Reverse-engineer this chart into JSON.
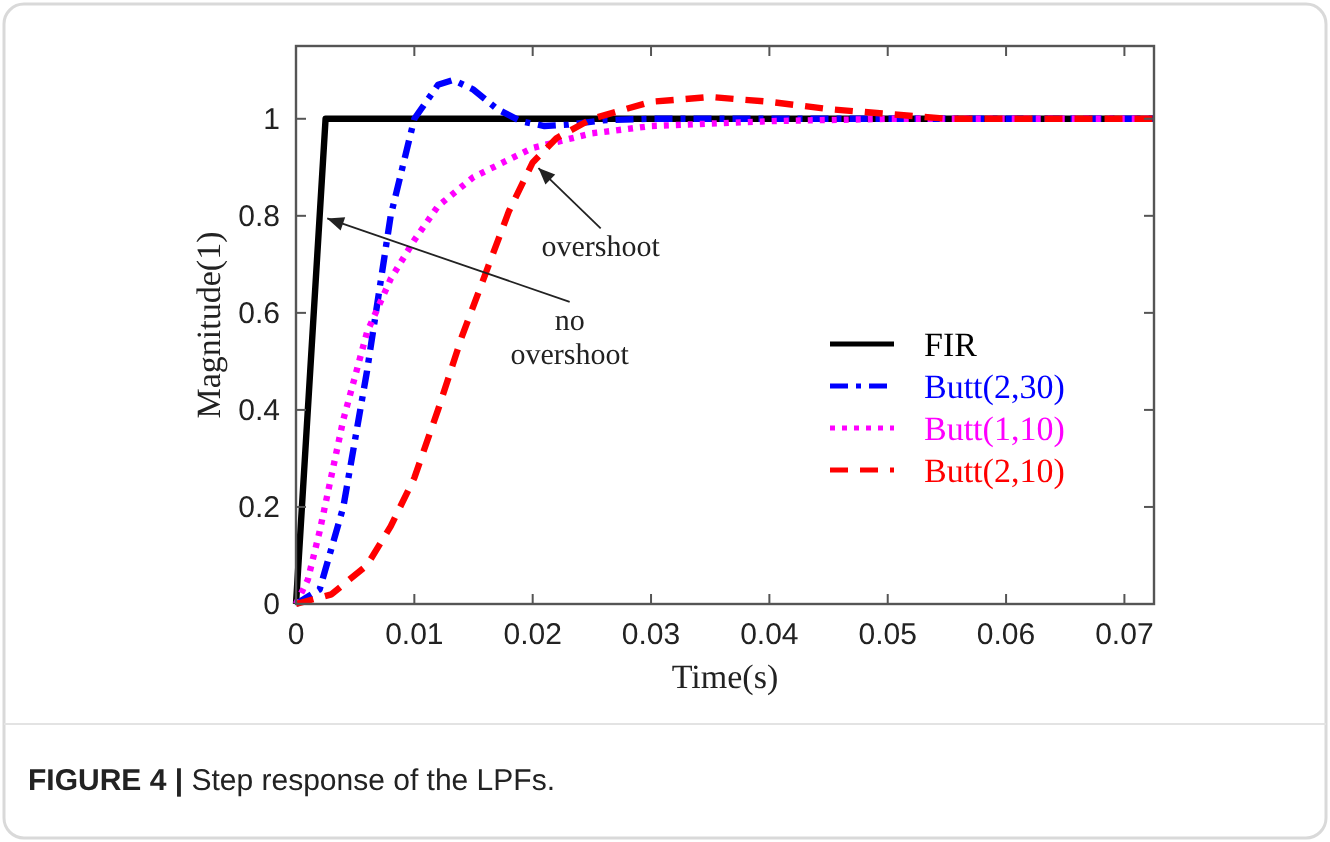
{
  "chart_data": {
    "type": "line",
    "xlabel": "Time(s)",
    "ylabel": "Magnitude(1)",
    "xlim": [
      0,
      0.0725
    ],
    "xticks": [
      0,
      0.01,
      0.02,
      0.03,
      0.04,
      0.05,
      0.06,
      0.07
    ],
    "ylim": [
      0,
      1.15
    ],
    "yticks": [
      0,
      0.2,
      0.4,
      0.6,
      0.8,
      1
    ],
    "grid": false,
    "legend": "right",
    "series": [
      {
        "name": "FIR",
        "color": "#000000",
        "line_style": "solid",
        "x": [
          0,
          0.0025,
          0.0725
        ],
        "values": [
          0,
          1,
          1
        ]
      },
      {
        "name": "Butt(2,30)",
        "color": "#0000ff",
        "line_style": "dashdot",
        "x": [
          0,
          0.002,
          0.004,
          0.006,
          0.008,
          0.01,
          0.012,
          0.0133,
          0.015,
          0.017,
          0.019,
          0.021,
          0.023,
          0.026,
          0.03,
          0.0725
        ],
        "values": [
          0,
          0.03,
          0.2,
          0.48,
          0.8,
          1,
          1.07,
          1.08,
          1.06,
          1.02,
          0.995,
          0.985,
          0.988,
          0.997,
          1,
          1
        ]
      },
      {
        "name": "Butt(1,10)",
        "color": "#ff00ff",
        "line_style": "dotted",
        "x": [
          0,
          0.001,
          0.002,
          0.004,
          0.006,
          0.008,
          0.01,
          0.012,
          0.015,
          0.02,
          0.025,
          0.03,
          0.04,
          0.05,
          0.0725
        ],
        "values": [
          0,
          0.05,
          0.15,
          0.38,
          0.56,
          0.67,
          0.75,
          0.82,
          0.88,
          0.94,
          0.97,
          0.985,
          0.995,
          1,
          1
        ]
      },
      {
        "name": "Butt(2,10)",
        "color": "#ff0000",
        "line_style": "dashed",
        "x": [
          0,
          0.003,
          0.006,
          0.008,
          0.01,
          0.012,
          0.014,
          0.016,
          0.018,
          0.02,
          0.022,
          0.025,
          0.03,
          0.035,
          0.04,
          0.045,
          0.05,
          0.055,
          0.0725
        ],
        "values": [
          0,
          0.02,
          0.08,
          0.16,
          0.26,
          0.4,
          0.55,
          0.68,
          0.81,
          0.91,
          0.96,
          1,
          1.035,
          1.045,
          1.035,
          1.02,
          1.01,
          1,
          1
        ]
      }
    ],
    "annotations": [
      {
        "text": "overshoot",
        "x": 0.02,
        "y": 0.91
      },
      {
        "text": "no overshoot",
        "x": 0.002,
        "y": 0.8
      },
      "FIGURE 4 | Step response of the LPFs."
    ]
  }
}
